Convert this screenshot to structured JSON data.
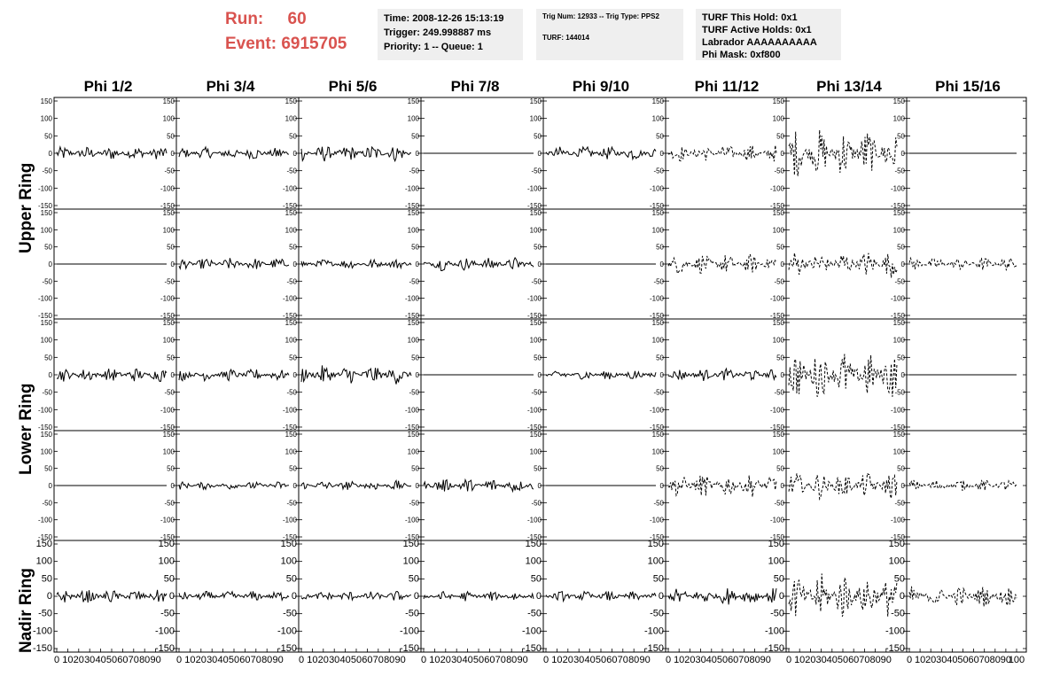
{
  "header": {
    "run_label": "Run:",
    "run_value": "60",
    "event_label": "Event:",
    "event_value": "6915705"
  },
  "info_time": {
    "time": "Time: 2008-12-26 15:13:19",
    "trigger": "Trigger: 249.998887 ms",
    "priority": "Priority: 1 -- Queue: 1"
  },
  "info_trig": {
    "trig": "Trig Num: 12933 -- Trig Type: PPS2",
    "turf": "TURF: 144014"
  },
  "info_turf": {
    "hold": "TURF This Hold: 0x1",
    "active": "TURF Active Holds: 0x1",
    "labrador": "Labrador AAAAAAAAAA",
    "mask": "Phi Mask: 0xf800"
  },
  "chart_data": {
    "type": "line",
    "columns": [
      "Phi 1/2",
      "Phi 3/4",
      "Phi 5/6",
      "Phi 7/8",
      "Phi 9/10",
      "Phi 11/12",
      "Phi 13/14",
      "Phi 15/16"
    ],
    "ring_labels": [
      "Upper Ring",
      "Lower Ring",
      "Nadir Ring"
    ],
    "ylim": [
      -150,
      150
    ],
    "xlim": [
      0,
      100
    ],
    "y_ticks": [
      -150,
      -100,
      -50,
      0,
      50,
      100,
      150
    ],
    "x_ticks": [
      0,
      10,
      20,
      30,
      40,
      50,
      60,
      70,
      80,
      90,
      100
    ],
    "line_styles": {
      "solid": "solid",
      "dashed": "dashed"
    },
    "rows": [
      {
        "ring": "Upper Ring",
        "style": [
          "solid",
          "solid",
          "solid",
          "solid",
          "solid",
          "dashed",
          "dashed",
          "solid"
        ],
        "amplitude": [
          20,
          18,
          25,
          0,
          20,
          25,
          70,
          0
        ]
      },
      {
        "ring": "Upper Ring",
        "style": [
          "solid",
          "solid",
          "solid",
          "solid",
          "solid",
          "dashed",
          "dashed",
          "dashed"
        ],
        "amplitude": [
          0,
          18,
          15,
          20,
          0,
          30,
          40,
          20
        ]
      },
      {
        "ring": "Lower Ring",
        "style": [
          "solid",
          "solid",
          "solid",
          "solid",
          "solid",
          "solid",
          "dashed",
          "solid"
        ],
        "amplitude": [
          20,
          18,
          28,
          0,
          15,
          18,
          70,
          0
        ]
      },
      {
        "ring": "Lower Ring",
        "style": [
          "solid",
          "solid",
          "solid",
          "solid",
          "solid",
          "dashed",
          "dashed",
          "dashed"
        ],
        "amplitude": [
          0,
          12,
          15,
          22,
          0,
          35,
          40,
          18
        ]
      },
      {
        "ring": "Nadir Ring",
        "style": [
          "solid",
          "solid",
          "solid",
          "solid",
          "solid",
          "solid",
          "dashed",
          "dashed"
        ],
        "amplitude": [
          20,
          15,
          15,
          15,
          15,
          25,
          70,
          30
        ]
      }
    ]
  }
}
